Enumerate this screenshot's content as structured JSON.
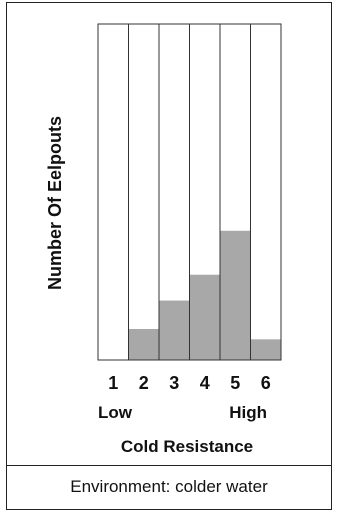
{
  "chart_data": {
    "type": "bar",
    "categories": [
      "1",
      "2",
      "3",
      "4",
      "5",
      "6"
    ],
    "values": [
      0,
      12,
      23,
      33,
      50,
      8
    ],
    "ylim": [
      0,
      130
    ],
    "ylabel": "Number Of Eelpouts",
    "xlabel": "Cold Resistance",
    "scale_low_label": "Low",
    "scale_high_label": "High",
    "grid": false,
    "bar_color": "#a8a8a8",
    "column_background": "#ffffff",
    "outline_color": "#333333"
  },
  "caption": "Environment: colder water"
}
